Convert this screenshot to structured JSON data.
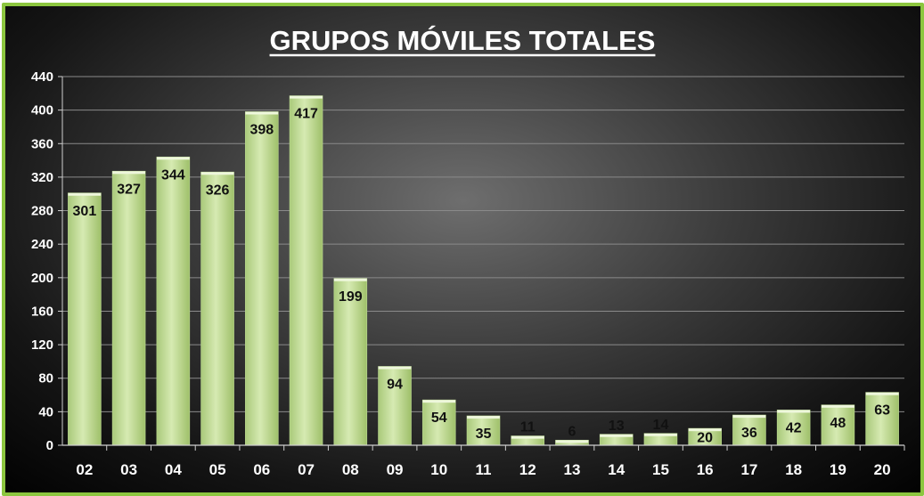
{
  "chart_data": {
    "type": "bar",
    "title": "GRUPOS MÓVILES TOTALES",
    "xlabel": "",
    "ylabel": "",
    "categories": [
      "02",
      "03",
      "04",
      "05",
      "06",
      "07",
      "08",
      "09",
      "10",
      "11",
      "12",
      "13",
      "14",
      "15",
      "16",
      "17",
      "18",
      "19",
      "20"
    ],
    "values": [
      301,
      327,
      344,
      326,
      398,
      417,
      199,
      94,
      54,
      35,
      11,
      6,
      13,
      14,
      20,
      36,
      42,
      48,
      63
    ],
    "data_labels": [
      "301",
      "327",
      "344",
      "326",
      "398",
      "417",
      "199",
      "94",
      "54",
      "35",
      "11",
      "6",
      "13",
      "14",
      "20",
      "36",
      "42",
      "48",
      "63"
    ],
    "ylim": [
      0,
      440
    ],
    "yticks": [
      "0",
      "40",
      "80",
      "120",
      "160",
      "200",
      "240",
      "280",
      "320",
      "360",
      "400",
      "440"
    ],
    "grid": true,
    "legend": "none",
    "colors": {
      "bar": "#c3dc9a",
      "bar_light": "#e2f0c7",
      "bar_dark": "#97bb5e",
      "frame": "#8cc63f",
      "label": "#111111",
      "highlight_label": "#e8492a",
      "text": "#ffffff"
    },
    "highlight_index": 18
  }
}
